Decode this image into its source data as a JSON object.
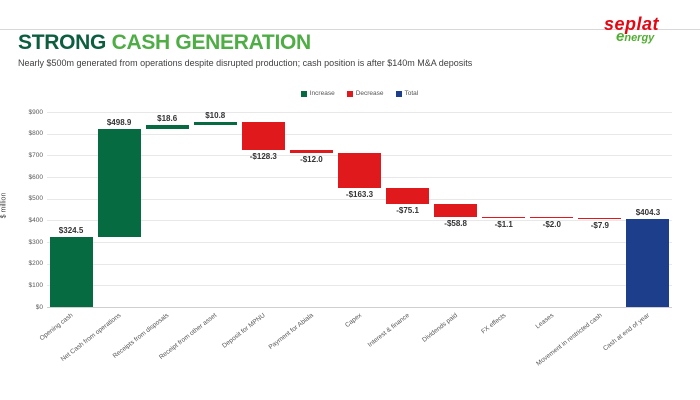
{
  "slide": {
    "title_primary": "STRONG",
    "title_secondary": "CASH GENERATION",
    "subtitle": "Nearly $500m generated from operations despite disrupted production; cash position is after $140m M&A deposits",
    "logo": {
      "line1": "seplat",
      "line2": "energy"
    }
  },
  "colors": {
    "title_primary": "#0D5E40",
    "title_secondary": "#4FAD45",
    "increase": "#066B41",
    "decrease": "#E0191C",
    "total": "#1D3E8A",
    "gridline": "#E8E8E8",
    "axis_line": "#CFCFCF",
    "tick_text": "#595959",
    "value_text": "#333333",
    "logo_red": "#E30613",
    "logo_green": "#52AE32"
  },
  "chart_data": {
    "type": "bar",
    "subtype": "waterfall",
    "title": "STRONG CASH GENERATION",
    "xlabel": "",
    "ylabel": "$ million",
    "ylim": [
      0,
      900
    ],
    "ytick_interval": 100,
    "ytick_prefix": "$",
    "grid": "horizontal",
    "legend_position": "top-center",
    "legend": [
      {
        "label": "Increase",
        "type": "increase"
      },
      {
        "label": "Decrease",
        "type": "decrease"
      },
      {
        "label": "Total",
        "type": "total"
      }
    ],
    "categories": [
      "Opening cash",
      "Net Cash from operations",
      "Receipts from disposals",
      "Receipt from other asset",
      "Deposit for MPNU",
      "Payment for Abiala",
      "Capex",
      "Interest & finance",
      "Dividends paid",
      "FX effects",
      "Leases",
      "Movement in restricted cash",
      "Cash at end of year"
    ],
    "values": [
      324.5,
      498.9,
      18.6,
      10.8,
      -128.3,
      -12.0,
      -163.3,
      -75.1,
      -58.8,
      -1.1,
      -2.0,
      -7.9,
      404.3
    ],
    "value_labels": [
      "$324.5",
      "$498.9",
      "$18.6",
      "$10.8",
      "-$128.3",
      "-$12.0",
      "-$163.3",
      "-$75.1",
      "-$58.8",
      "-$1.1",
      "-$2.0",
      "-$7.9",
      "$404.3"
    ],
    "bar_types": [
      "increase",
      "increase",
      "increase",
      "increase",
      "decrease",
      "decrease",
      "decrease",
      "decrease",
      "decrease",
      "decrease",
      "decrease",
      "decrease",
      "total"
    ],
    "cumulative_ends": [
      324.5,
      823.4,
      842.0,
      852.8,
      724.5,
      712.5,
      549.2,
      474.1,
      415.3,
      414.2,
      412.2,
      404.3,
      404.3
    ]
  }
}
